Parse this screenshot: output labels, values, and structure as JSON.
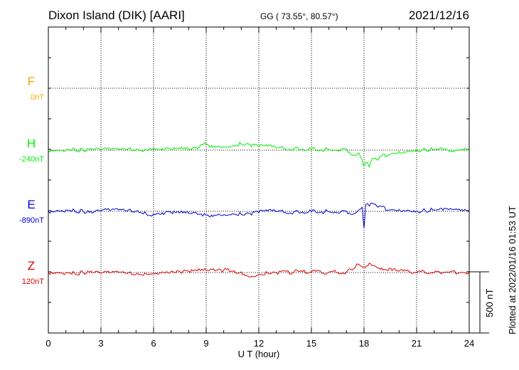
{
  "header": {
    "station": "Dixon Island (DIK)  [AARI]",
    "coords": "GG ( 73.55°,  80.57°)",
    "date": "2021/12/16"
  },
  "plotted_note": "Plotted at 2022/01/16 01:53 UT",
  "colors": {
    "F": "#f5a800",
    "H": "#00ee00",
    "E": "#0000cc",
    "Z": "#dd0000"
  },
  "chart_data": {
    "type": "line",
    "title": "Dixon Island (DIK)  [AARI]",
    "xlabel": "U T (hour)",
    "ylabel": "",
    "xlim": [
      0,
      24
    ],
    "x_ticks": [
      "0",
      "3",
      "6",
      "9",
      "12",
      "15",
      "18",
      "21",
      "24"
    ],
    "grid": true,
    "scale_bar": {
      "label": "500 nT",
      "value_nT": 500
    },
    "series": [
      {
        "name": "F",
        "offset_label": "0nT",
        "color": "#f5a800",
        "x": [],
        "values": []
      },
      {
        "name": "H",
        "offset_label": "-240nT",
        "color": "#00ee00",
        "x": [
          0,
          0.5,
          1,
          1.5,
          2,
          2.5,
          3,
          3.5,
          4,
          4.5,
          5,
          5.5,
          5.8,
          6.0,
          6.2,
          6.5,
          7,
          7.5,
          8,
          8.5,
          8.8,
          9.0,
          9.3,
          9.7,
          10,
          10.5,
          11,
          11.5,
          12,
          12.5,
          13,
          14,
          15,
          16,
          17,
          17.5,
          17.7,
          17.9,
          18.0,
          18.1,
          18.3,
          18.5,
          18.8,
          19,
          19.5,
          20,
          20.5,
          21,
          21.5,
          22,
          22.5,
          23,
          23.5,
          24
        ],
        "values": [
          0,
          5,
          8,
          12,
          -5,
          5,
          10,
          8,
          6,
          8,
          5,
          10,
          25,
          30,
          20,
          25,
          15,
          20,
          10,
          20,
          75,
          85,
          70,
          60,
          55,
          65,
          90,
          85,
          45,
          60,
          30,
          25,
          10,
          8,
          15,
          -80,
          -40,
          -150,
          -240,
          -180,
          -250,
          -120,
          -150,
          -80,
          -60,
          -20,
          -10,
          0,
          5,
          10,
          0,
          -25,
          -5,
          5
        ]
      },
      {
        "name": "E",
        "offset_label": "-890nT",
        "color": "#0000cc",
        "x": [
          0,
          0.5,
          1,
          1.5,
          2,
          2.5,
          3,
          3.5,
          4,
          4.5,
          5,
          5.5,
          5.8,
          6.0,
          6.2,
          6.5,
          7,
          7.5,
          8,
          8.5,
          8.8,
          9.0,
          9.3,
          9.7,
          10,
          10.5,
          11,
          11.5,
          12,
          12.5,
          13,
          14,
          15,
          16,
          17,
          17.5,
          17.7,
          17.9,
          18.0,
          18.1,
          18.3,
          18.5,
          18.8,
          19,
          19.5,
          20,
          20.5,
          21,
          21.5,
          22,
          22.5,
          23,
          23.5,
          24
        ],
        "values": [
          0,
          15,
          20,
          10,
          -5,
          -25,
          10,
          15,
          20,
          5,
          0,
          -10,
          -60,
          -40,
          -30,
          -20,
          -15,
          -25,
          -30,
          -45,
          -70,
          -60,
          -55,
          -40,
          -50,
          -35,
          -45,
          -30,
          -20,
          5,
          -5,
          -10,
          -5,
          -5,
          0,
          -30,
          20,
          60,
          -250,
          100,
          80,
          120,
          60,
          70,
          20,
          30,
          20,
          5,
          10,
          20,
          15,
          30,
          10,
          0
        ]
      },
      {
        "name": "Z",
        "offset_label": "120nT",
        "color": "#dd0000",
        "x": [
          0,
          0.5,
          1,
          1.5,
          2,
          2.5,
          3,
          3.5,
          4,
          4.5,
          5,
          5.5,
          6.0,
          6.5,
          7,
          7.5,
          8,
          8.5,
          9,
          9.5,
          10,
          10.5,
          11,
          11.3,
          11.6,
          12,
          12.5,
          13,
          14,
          15,
          16,
          17,
          17.5,
          17.7,
          18,
          18.3,
          18.6,
          19,
          19.3,
          19.6,
          20,
          21,
          22,
          23,
          23.5,
          24
        ],
        "values": [
          0,
          5,
          0,
          -10,
          -5,
          0,
          -10,
          -5,
          0,
          -15,
          -25,
          -10,
          -5,
          10,
          20,
          15,
          20,
          25,
          30,
          25,
          35,
          20,
          10,
          -45,
          -55,
          -30,
          -10,
          0,
          5,
          10,
          5,
          10,
          80,
          120,
          90,
          140,
          100,
          70,
          40,
          30,
          20,
          10,
          5,
          15,
          0,
          0
        ]
      }
    ]
  }
}
